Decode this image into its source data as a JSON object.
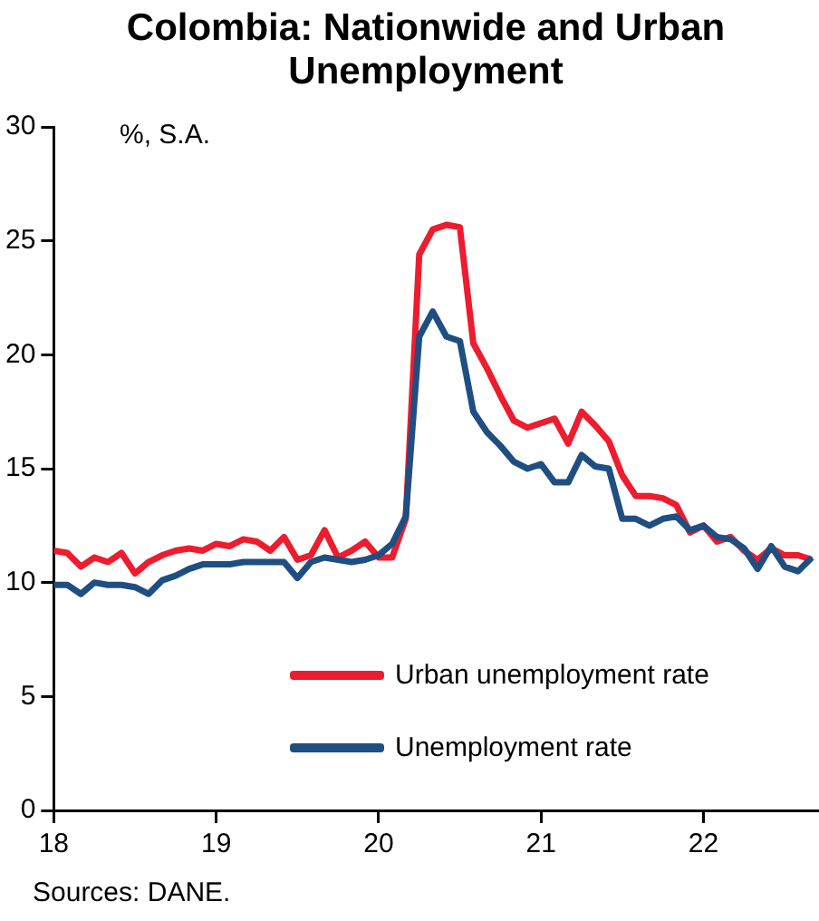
{
  "chart_data": {
    "type": "line",
    "title": "Colombia: Nationwide and Urban Unemployment",
    "ylabel": "%, S.A.",
    "annotations": [
      "Sources: DANE."
    ],
    "x": [
      18,
      18.083,
      18.167,
      18.25,
      18.333,
      18.417,
      18.5,
      18.583,
      18.667,
      18.75,
      18.833,
      18.917,
      19,
      19.083,
      19.167,
      19.25,
      19.333,
      19.417,
      19.5,
      19.583,
      19.667,
      19.75,
      19.833,
      19.917,
      20,
      20.083,
      20.167,
      20.25,
      20.333,
      20.417,
      20.5,
      20.583,
      20.667,
      20.75,
      20.833,
      20.917,
      21,
      21.083,
      21.167,
      21.25,
      21.333,
      21.417,
      21.5,
      21.583,
      21.667,
      21.75,
      21.833,
      21.917,
      22,
      22.083,
      22.167,
      22.25,
      22.333,
      22.417,
      22.5,
      22.583,
      22.667
    ],
    "series": [
      {
        "name": "Urban unemployment rate",
        "color": "#ed1c2e",
        "values": [
          11.4,
          11.3,
          10.7,
          11.1,
          10.9,
          11.3,
          10.4,
          10.9,
          11.2,
          11.4,
          11.5,
          11.4,
          11.7,
          11.6,
          11.9,
          11.8,
          11.4,
          12.0,
          11.0,
          11.2,
          12.3,
          11.1,
          11.4,
          11.8,
          11.1,
          11.1,
          12.8,
          24.4,
          25.5,
          25.7,
          25.6,
          20.5,
          19.4,
          18.2,
          17.1,
          16.8,
          17.0,
          17.2,
          16.1,
          17.5,
          16.9,
          16.2,
          14.7,
          13.8,
          13.8,
          13.7,
          13.4,
          12.2,
          12.5,
          11.8,
          12.0,
          11.4,
          11.0,
          11.5,
          11.2,
          11.2,
          11.0
        ]
      },
      {
        "name": "Unemployment rate",
        "color": "#1f4e82",
        "values": [
          9.9,
          9.9,
          9.5,
          10.0,
          9.9,
          9.9,
          9.8,
          9.5,
          10.1,
          10.3,
          10.6,
          10.8,
          10.8,
          10.8,
          10.9,
          10.9,
          10.9,
          10.9,
          10.2,
          10.9,
          11.1,
          11.0,
          10.9,
          11.0,
          11.2,
          11.7,
          12.9,
          20.8,
          21.9,
          20.8,
          20.6,
          17.5,
          16.6,
          16.0,
          15.3,
          15.0,
          15.2,
          14.4,
          14.4,
          15.6,
          15.1,
          15.0,
          12.8,
          12.8,
          12.5,
          12.8,
          12.9,
          12.3,
          12.5,
          12.0,
          11.9,
          11.5,
          10.6,
          11.6,
          10.7,
          10.5,
          11.1
        ]
      }
    ],
    "xlim": [
      18,
      22.7
    ],
    "xticks": [
      18,
      19,
      20,
      21,
      22
    ],
    "ylim": [
      0,
      30
    ],
    "yticks": [
      0,
      5,
      10,
      15,
      20,
      25,
      30
    ],
    "grid": false,
    "legend": "bottom right",
    "marker": "none",
    "line_style": "solid"
  }
}
